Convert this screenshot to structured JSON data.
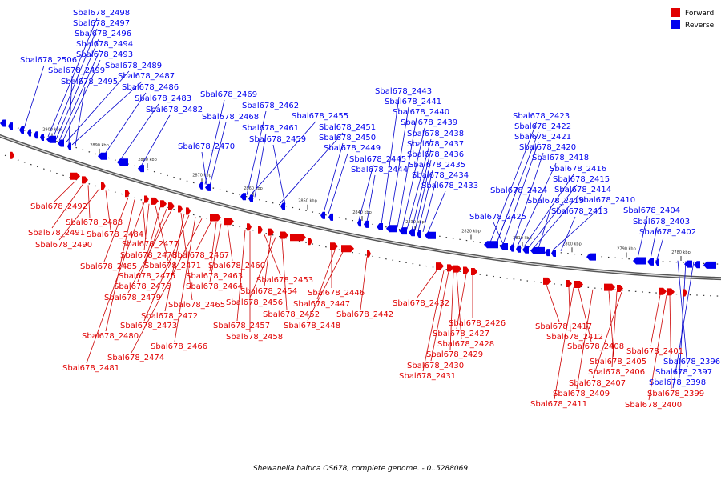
{
  "caption": "Shewanella baltica OS678, complete genome. - 0..5288069",
  "legend": [
    {
      "label": "Forward",
      "color": "#e00000"
    },
    {
      "label": "Reverse",
      "color": "#0000ee"
    }
  ],
  "colors": {
    "forward": "#e00000",
    "reverse": "#0000ee",
    "backbone": "#777777",
    "leader_forward": "#cc0000",
    "leader_reverse": "#0000cc"
  },
  "scale_ticks": [
    "2900 kbp",
    "2890 kbp",
    "2880 kbp",
    "2870 kbp",
    "2860 kbp",
    "2850 kbp",
    "2840 kbp",
    "2830 kbp",
    "2820 kbp",
    "2810 kbp",
    "2800 kbp",
    "2790 kbp",
    "2780 kbp"
  ],
  "reverse_genes": [
    "Sbal678_2498",
    "Sbal678_2497",
    "Sbal678_2496",
    "Sbal678_2494",
    "Sbal678_2493",
    "Sbal678_2506",
    "Sbal678_2489",
    "Sbal678_2499",
    "Sbal678_2487",
    "Sbal678_2495",
    "Sbal678_2486",
    "Sbal678_2483",
    "Sbal678_2482",
    "Sbal678_2469",
    "Sbal678_2462",
    "Sbal678_2468",
    "Sbal678_2455",
    "Sbal678_2461",
    "Sbal678_2451",
    "Sbal678_2459",
    "Sbal678_2450",
    "Sbal678_2470",
    "Sbal678_2449",
    "Sbal678_2445",
    "Sbal678_2444",
    "Sbal678_2443",
    "Sbal678_2441",
    "Sbal678_2440",
    "Sbal678_2439",
    "Sbal678_2438",
    "Sbal678_2437",
    "Sbal678_2436",
    "Sbal678_2435",
    "Sbal678_2434",
    "Sbal678_2433",
    "Sbal678_2423",
    "Sbal678_2422",
    "Sbal678_2421",
    "Sbal678_2420",
    "Sbal678_2418",
    "Sbal678_2416",
    "Sbal678_2415",
    "Sbal678_2414",
    "Sbal678_2424",
    "Sbal678_2419",
    "Sbal678_2410",
    "Sbal678_2425",
    "Sbal678_2413",
    "Sbal678_2404",
    "Sbal678_2403",
    "Sbal678_2402",
    "Sbal678_2396",
    "Sbal678_2397",
    "Sbal678_2398"
  ],
  "forward_genes": [
    "Sbal678_2492",
    "Sbal678_2488",
    "Sbal678_2491",
    "Sbal678_2484",
    "Sbal678_2490",
    "Sbal678_2477",
    "Sbal678_2478",
    "Sbal678_2467",
    "Sbal678_2485",
    "Sbal678_2471",
    "Sbal678_2460",
    "Sbal678_2475",
    "Sbal678_2463",
    "Sbal678_2476",
    "Sbal678_2464",
    "Sbal678_2453",
    "Sbal678_2479",
    "Sbal678_2454",
    "Sbal678_2446",
    "Sbal678_2465",
    "Sbal678_2456",
    "Sbal678_2447",
    "Sbal678_2472",
    "Sbal678_2452",
    "Sbal678_2442",
    "Sbal678_2473",
    "Sbal678_2457",
    "Sbal678_2448",
    "Sbal678_2480",
    "Sbal678_2458",
    "Sbal678_2466",
    "Sbal678_2474",
    "Sbal678_2481",
    "Sbal678_2432",
    "Sbal678_2426",
    "Sbal678_2427",
    "Sbal678_2428",
    "Sbal678_2429",
    "Sbal678_2430",
    "Sbal678_2431",
    "Sbal678_2417",
    "Sbal678_2412",
    "Sbal678_2408",
    "Sbal678_2405",
    "Sbal678_2406",
    "Sbal678_2407",
    "Sbal678_2409",
    "Sbal678_2411",
    "Sbal678_2401",
    "Sbal678_2399",
    "Sbal678_2400"
  ]
}
